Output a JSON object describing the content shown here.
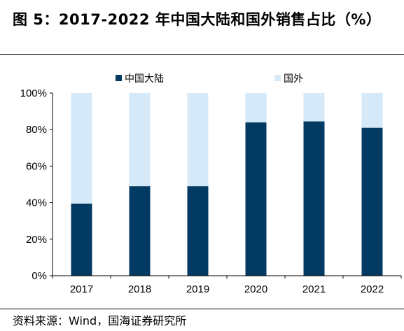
{
  "figure": {
    "title": "图 5：2017-2022 年中国大陆和国外销售占比（%）",
    "source": "资料来源：Wind，国海证券研究所"
  },
  "colors": {
    "mainland": "#033A64",
    "overseas": "#D6E9F8"
  },
  "chart_data": {
    "type": "bar",
    "stacked": true,
    "categories": [
      "2017",
      "2018",
      "2019",
      "2020",
      "2021",
      "2022"
    ],
    "series": [
      {
        "name": "中国大陆",
        "values": [
          39.5,
          49,
          49,
          84,
          84.5,
          81
        ]
      },
      {
        "name": "国外",
        "values": [
          60.5,
          51,
          51,
          16,
          15.5,
          19
        ]
      }
    ],
    "ylim": [
      0,
      100
    ],
    "yticks": [
      "0%",
      "20%",
      "40%",
      "60%",
      "80%",
      "100%"
    ],
    "ytick_values": [
      0,
      20,
      40,
      60,
      80,
      100
    ],
    "grid": false,
    "legend_position": "top"
  }
}
